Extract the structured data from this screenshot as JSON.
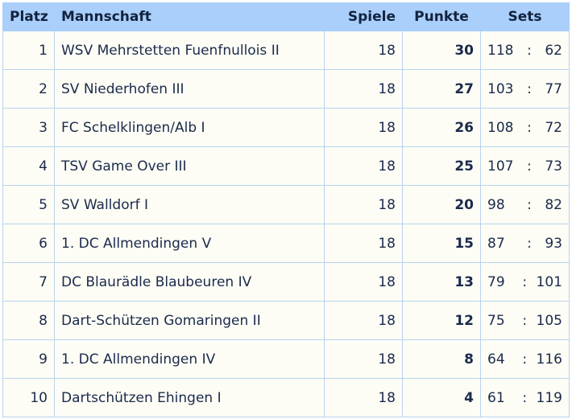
{
  "headers": {
    "platz": "Platz",
    "mannschaft": "Mannschaft",
    "spiele": "Spiele",
    "punkte": "Punkte",
    "sets": "Sets"
  },
  "set_separator": ":",
  "rows": [
    {
      "platz": "1",
      "mannschaft": "WSV Mehrstetten Fuenfnullois II",
      "spiele": "18",
      "punkte": "30",
      "sets_won": "118",
      "sets_lost": "62"
    },
    {
      "platz": "2",
      "mannschaft": "SV Niederhofen III",
      "spiele": "18",
      "punkte": "27",
      "sets_won": "103",
      "sets_lost": "77"
    },
    {
      "platz": "3",
      "mannschaft": "FC Schelklingen/Alb I",
      "spiele": "18",
      "punkte": "26",
      "sets_won": "108",
      "sets_lost": "72"
    },
    {
      "platz": "4",
      "mannschaft": "TSV Game Over III",
      "spiele": "18",
      "punkte": "25",
      "sets_won": "107",
      "sets_lost": "73"
    },
    {
      "platz": "5",
      "mannschaft": "SV Walldorf I",
      "spiele": "18",
      "punkte": "20",
      "sets_won": "98",
      "sets_lost": "82"
    },
    {
      "platz": "6",
      "mannschaft": "1. DC Allmendingen V",
      "spiele": "18",
      "punkte": "15",
      "sets_won": "87",
      "sets_lost": "93"
    },
    {
      "platz": "7",
      "mannschaft": "DC Blaurädle Blaubeuren IV",
      "spiele": "18",
      "punkte": "13",
      "sets_won": "79",
      "sets_lost": "101"
    },
    {
      "platz": "8",
      "mannschaft": "Dart-Schützen Gomaringen II",
      "spiele": "18",
      "punkte": "12",
      "sets_won": "75",
      "sets_lost": "105"
    },
    {
      "platz": "9",
      "mannschaft": "1. DC Allmendingen IV",
      "spiele": "18",
      "punkte": "8",
      "sets_won": "64",
      "sets_lost": "116"
    },
    {
      "platz": "10",
      "mannschaft": "Dartschützen Ehingen I",
      "spiele": "18",
      "punkte": "4",
      "sets_won": "61",
      "sets_lost": "119"
    }
  ]
}
